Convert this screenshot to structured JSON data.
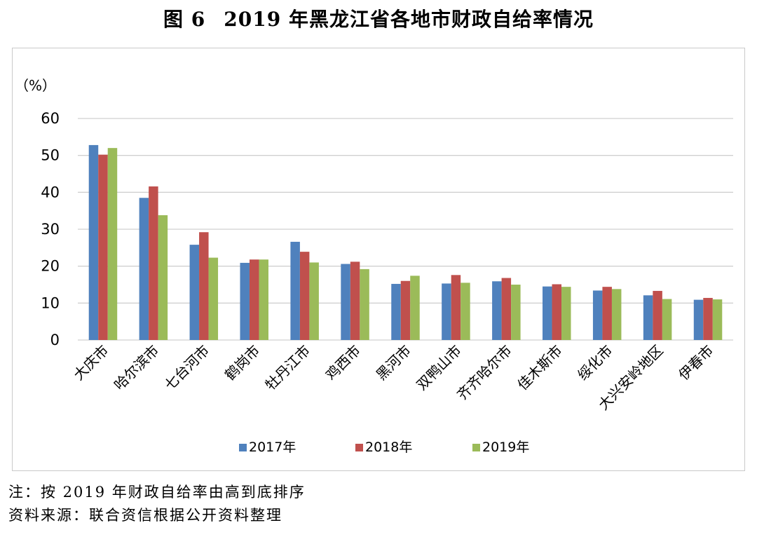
{
  "figure": {
    "number": "图 6",
    "title": "2019 年黑龙江省各地市财政自给率情况"
  },
  "chart_data": {
    "type": "bar",
    "unit_label": "（%）",
    "ylim": [
      0,
      60
    ],
    "yticks": [
      0,
      10,
      20,
      30,
      40,
      50,
      60
    ],
    "grid": true,
    "legend_position": "bottom",
    "categories": [
      "大庆市",
      "哈尔滨市",
      "七台河市",
      "鹤岗市",
      "牡丹江市",
      "鸡西市",
      "黑河市",
      "双鸭山市",
      "齐齐哈尔市",
      "佳木斯市",
      "绥化市",
      "大兴安岭地区",
      "伊春市"
    ],
    "series": [
      {
        "name": "2017年",
        "color": "#4f81bd",
        "values": [
          52.8,
          38.5,
          25.8,
          20.9,
          26.6,
          20.6,
          15.2,
          15.3,
          15.9,
          14.5,
          13.4,
          12.1,
          10.9
        ]
      },
      {
        "name": "2018年",
        "color": "#c0504d",
        "values": [
          50.2,
          41.6,
          29.2,
          21.8,
          23.9,
          21.2,
          16.0,
          17.6,
          16.8,
          15.1,
          14.4,
          13.3,
          11.4
        ]
      },
      {
        "name": "2019年",
        "color": "#9bbb59",
        "values": [
          52.0,
          33.8,
          22.3,
          21.8,
          21.0,
          19.2,
          17.4,
          15.5,
          15.0,
          14.4,
          13.8,
          11.1,
          11.0
        ]
      }
    ]
  },
  "notes": {
    "note": "注：按 2019 年财政自给率由高到底排序",
    "source": "资料来源：联合资信根据公开资料整理"
  }
}
